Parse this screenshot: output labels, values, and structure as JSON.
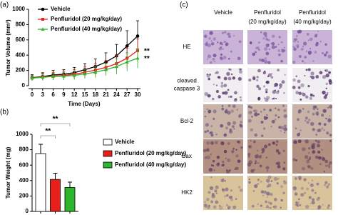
{
  "chart_data": [
    {
      "type": "line",
      "panel_label": "(a)",
      "x_label": "Time (Days)",
      "y_label": "Tumor Volume (mm³)",
      "x": [
        0,
        3,
        6,
        9,
        12,
        15,
        18,
        21,
        24,
        27,
        30
      ],
      "series": [
        {
          "name": "Vehicle",
          "color": "#000000",
          "values": [
            105,
            120,
            140,
            150,
            170,
            210,
            250,
            310,
            390,
            520,
            650
          ],
          "errors": [
            40,
            50,
            60,
            60,
            70,
            80,
            100,
            120,
            150,
            200,
            200
          ]
        },
        {
          "name": "Penfluridol (20 mg/kg/day)",
          "color": "#e8201c",
          "values": [
            100,
            115,
            125,
            135,
            150,
            175,
            205,
            240,
            290,
            360,
            460
          ],
          "errors": [
            35,
            45,
            50,
            55,
            60,
            70,
            80,
            90,
            110,
            130,
            150
          ]
        },
        {
          "name": "Penfluridol (40 mg/kg/day)",
          "color": "#2db52d",
          "values": [
            100,
            110,
            120,
            125,
            135,
            155,
            175,
            210,
            250,
            310,
            360
          ],
          "errors": [
            30,
            40,
            45,
            50,
            55,
            60,
            70,
            80,
            100,
            120,
            130
          ]
        }
      ],
      "xlim": [
        0,
        30
      ],
      "xticks": [
        0,
        3,
        6,
        9,
        12,
        15,
        18,
        21,
        24,
        27,
        30
      ],
      "ylim": [
        0,
        1000
      ],
      "yticks": [
        0,
        200,
        400,
        600,
        800,
        1000
      ],
      "annotations": [
        "**",
        "**"
      ]
    },
    {
      "type": "bar",
      "panel_label": "(b)",
      "y_label": "Tumor Weight (mg)",
      "categories": [
        null,
        null,
        null
      ],
      "values": [
        750,
        415,
        310
      ],
      "errors": [
        120,
        80,
        70
      ],
      "colors": [
        "#ffffff",
        "#e8201c",
        "#2db52d"
      ],
      "legend": [
        "Vehicle",
        "Penfluridol (20 mg/kg/day)",
        "Penfluridol (40 mg/kg/day)"
      ],
      "ylim": [
        0,
        1000
      ],
      "yticks": [
        0,
        200,
        400,
        600,
        800,
        1000
      ],
      "annotations": [
        "**",
        "**"
      ]
    }
  ],
  "histology": {
    "panel_label": "(c)",
    "columns": [
      [
        "Vehicle"
      ],
      [
        "Penfluridol",
        "(20 mg/kg/day)"
      ],
      [
        "Penfluridol",
        "(40 mg/kg/day)"
      ]
    ],
    "rows": [
      [
        "HE"
      ],
      [
        "cleaved",
        "caspase 3"
      ],
      [
        "Bcl-2"
      ],
      [
        "Bax"
      ],
      [
        "HK2"
      ]
    ]
  }
}
